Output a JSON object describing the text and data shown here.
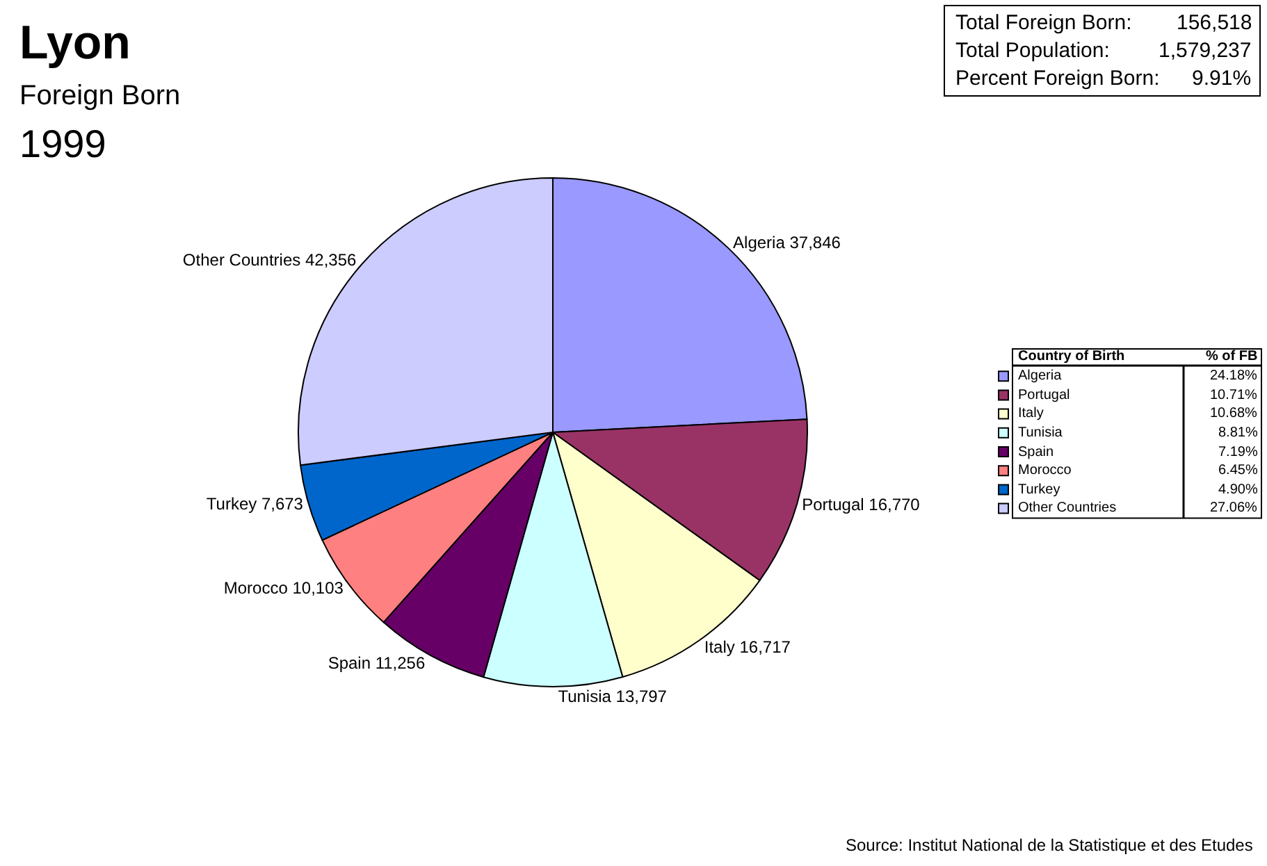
{
  "chart_data": {
    "type": "pie",
    "title": "Lyon",
    "subtitle": "Foreign Born",
    "categories": [
      "Algeria",
      "Portugal",
      "Italy",
      "Tunisia",
      "Spain",
      "Morocco",
      "Turkey",
      "Other Countries"
    ],
    "values": [
      37846,
      16770,
      16717,
      13797,
      11256,
      10103,
      7673,
      42356
    ],
    "colors": [
      "#9999ff",
      "#993366",
      "#ffffcc",
      "#ccffff",
      "#660066",
      "#ff8080",
      "#0066cc",
      "#ccccff"
    ],
    "value_labels": [
      "37,846",
      "16,770",
      "16,717",
      "13,797",
      "11,256",
      "10,103",
      "7,673",
      "42,356"
    ],
    "legend": "right",
    "annotations": [
      "1999",
      "Total Foreign Born: 156,518",
      "Total Population: 1,579,237",
      "Percent Foreign Born: 9.91%",
      "Country of Birth",
      "% of FB",
      "24.18%",
      "10.71%",
      "10.68%",
      "8.81%",
      "7.19%",
      "6.45%",
      "4.90%",
      "27.06%",
      "Source: Institut National de la Statistique et des Etudes"
    ]
  }
}
